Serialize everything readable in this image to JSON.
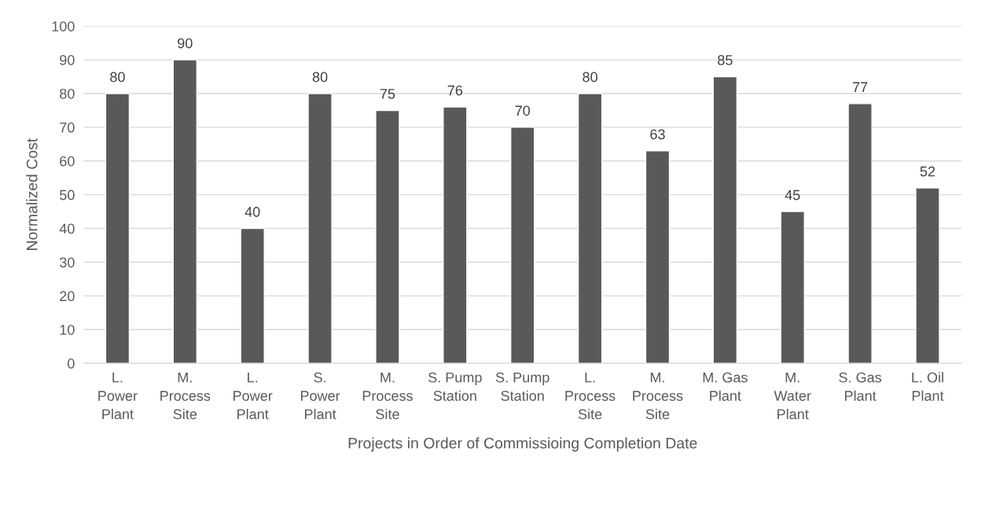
{
  "chart_data": {
    "type": "bar",
    "xlabel": "Projects in Order of Commissioing Completion Date",
    "ylabel": "Normalized Cost",
    "categories": [
      "L.\nPower\nPlant",
      "M.\nProcess\nSite",
      "L.\nPower\nPlant",
      "S.\nPower\nPlant",
      "M.\nProcess\nSite",
      "S. Pump\nStation",
      "S. Pump\nStation",
      "L.\nProcess\nSite",
      "M.\nProcess\nSite",
      "M. Gas\nPlant",
      "M.\nWater\nPlant",
      "S. Gas\nPlant",
      "L. Oil\nPlant"
    ],
    "values": [
      80,
      90,
      40,
      80,
      75,
      76,
      70,
      80,
      63,
      85,
      45,
      77,
      52
    ],
    "color": "#595959",
    "ylim": [
      0,
      100
    ],
    "yticks": [
      0,
      10,
      20,
      30,
      40,
      50,
      60,
      70,
      80,
      90,
      100
    ],
    "grid": "y",
    "data_labels": true,
    "legend": false
  }
}
